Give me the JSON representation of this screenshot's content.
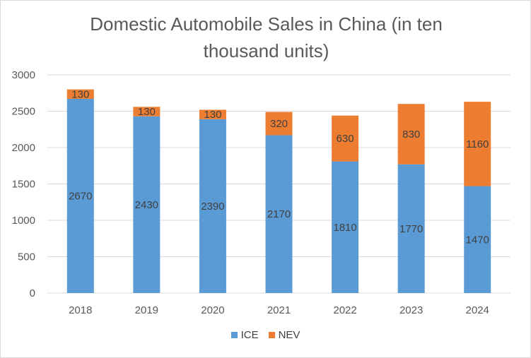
{
  "chart_data": {
    "type": "bar",
    "stacked": true,
    "title": "Domestic Automobile Sales in China (in ten thousand units)",
    "xlabel": "",
    "ylabel": "",
    "categories": [
      "2018",
      "2019",
      "2020",
      "2021",
      "2022",
      "2023",
      "2024"
    ],
    "series": [
      {
        "name": "ICE",
        "color": "#5b9bd5",
        "values": [
          2670,
          2430,
          2390,
          2170,
          1810,
          1770,
          1470
        ]
      },
      {
        "name": "NEV",
        "color": "#ed7d31",
        "values": [
          130,
          130,
          130,
          320,
          630,
          830,
          1160
        ]
      }
    ],
    "ylim": [
      0,
      3000
    ],
    "yticks": [
      0,
      500,
      1000,
      1500,
      2000,
      2500,
      3000
    ],
    "grid": true,
    "legend": "bottom",
    "data_labels": true
  }
}
